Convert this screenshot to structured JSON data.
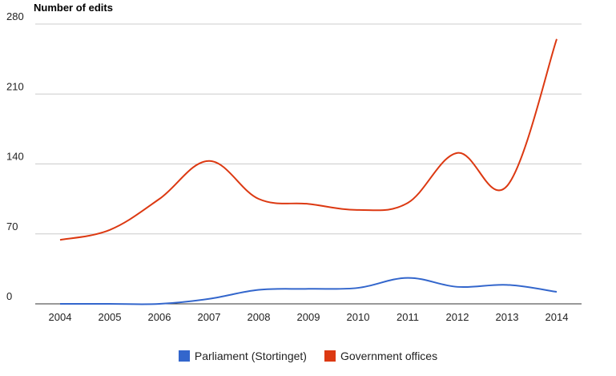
{
  "chart_data": {
    "type": "line",
    "title": "",
    "ylabel": "Number of edits",
    "xlabel": "",
    "categories": [
      "2004",
      "2005",
      "2006",
      "2007",
      "2008",
      "2009",
      "2010",
      "2011",
      "2012",
      "2013",
      "2014"
    ],
    "ylim": [
      0,
      280
    ],
    "yticks": [
      0,
      70,
      140,
      210,
      280
    ],
    "grid": true,
    "legend": "bottom",
    "series": [
      {
        "name": "Parliament (Stortinget)",
        "color": "#3366cc",
        "values": [
          0,
          0,
          0,
          5,
          14,
          15,
          16,
          26,
          17,
          19,
          12
        ]
      },
      {
        "name": "Government offices",
        "color": "#dc3912",
        "values": [
          64,
          74,
          105,
          143,
          105,
          100,
          94,
          101,
          151,
          118,
          265
        ]
      }
    ]
  }
}
